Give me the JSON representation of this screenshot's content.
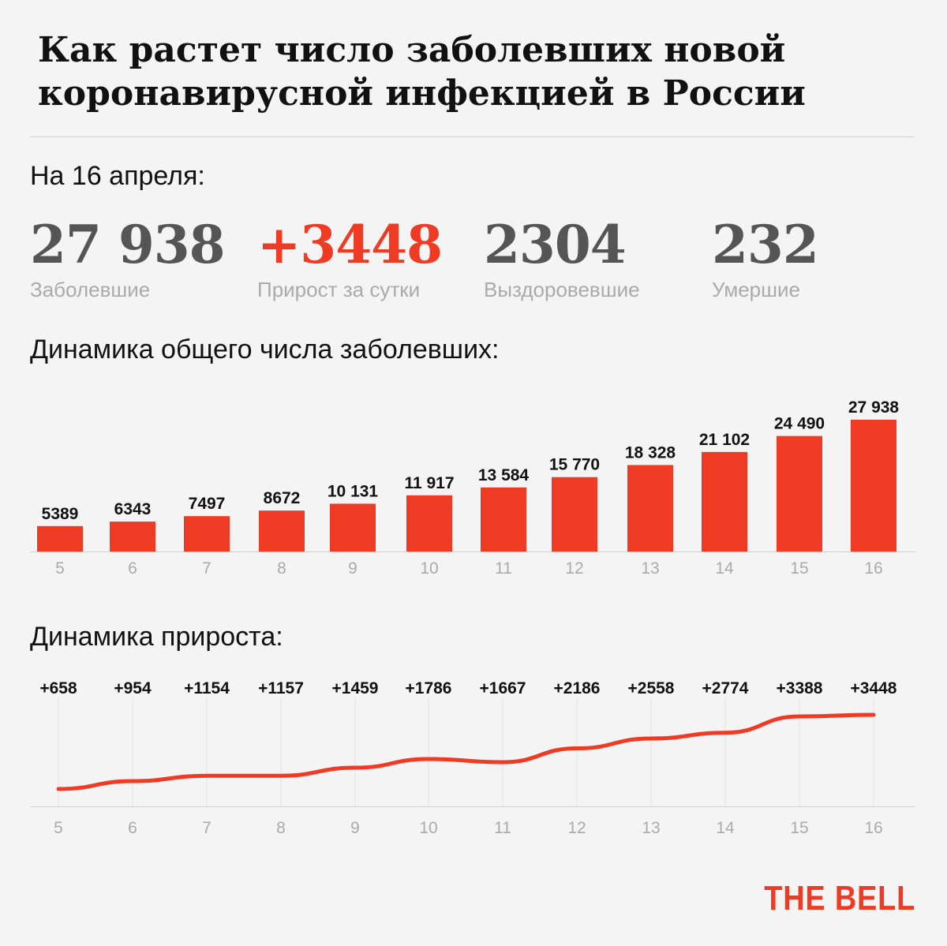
{
  "title": "Как растет число заболевших новой коронавирусной инфекцией в России",
  "date_label": "На 16 апреля:",
  "stats": [
    {
      "value": "27 938",
      "label": "Заболевшие",
      "accent": false
    },
    {
      "value": "+3448",
      "label": "Прирост за сутки",
      "accent": true
    },
    {
      "value": "2304",
      "label": "Выздоровевшие",
      "accent": false
    },
    {
      "value": "232",
      "label": "Умершие",
      "accent": false
    }
  ],
  "bar_section_title": "Динамика общего числа заболевших:",
  "line_section_title": "Динамика прироста:",
  "logo": "THE BELL",
  "colors": {
    "accent": "#ef3a24",
    "background": "#f4f4f4",
    "stat": "#555555",
    "axis_label": "#aaaaaa"
  },
  "chart_data": [
    {
      "type": "bar",
      "categories": [
        "5",
        "6",
        "7",
        "8",
        "9",
        "10",
        "11",
        "12",
        "13",
        "14",
        "15",
        "16"
      ],
      "values": [
        5389,
        6343,
        7497,
        8672,
        10131,
        11917,
        13584,
        15770,
        18328,
        21102,
        24490,
        27938
      ],
      "value_labels": [
        "5389",
        "6343",
        "7497",
        "8672",
        "10 131",
        "11 917",
        "13 584",
        "15 770",
        "18 328",
        "21 102",
        "24 490",
        "27 938"
      ],
      "title": "Динамика общего числа заболевших:",
      "xlabel": "",
      "ylabel": "",
      "ylim": [
        0,
        28000
      ],
      "grid": false
    },
    {
      "type": "line",
      "categories": [
        "5",
        "6",
        "7",
        "8",
        "9",
        "10",
        "11",
        "12",
        "13",
        "14",
        "15",
        "16"
      ],
      "values": [
        658,
        954,
        1154,
        1157,
        1459,
        1786,
        1667,
        2186,
        2558,
        2774,
        3388,
        3448
      ],
      "value_labels": [
        "+658",
        "+954",
        "+1154",
        "+1157",
        "+1459",
        "+1786",
        "+1667",
        "+2186",
        "+2558",
        "+2774",
        "+3388",
        "+3448"
      ],
      "title": "Динамика прироста:",
      "xlabel": "",
      "ylabel": "",
      "ylim": [
        0,
        3600
      ],
      "grid": true
    }
  ]
}
